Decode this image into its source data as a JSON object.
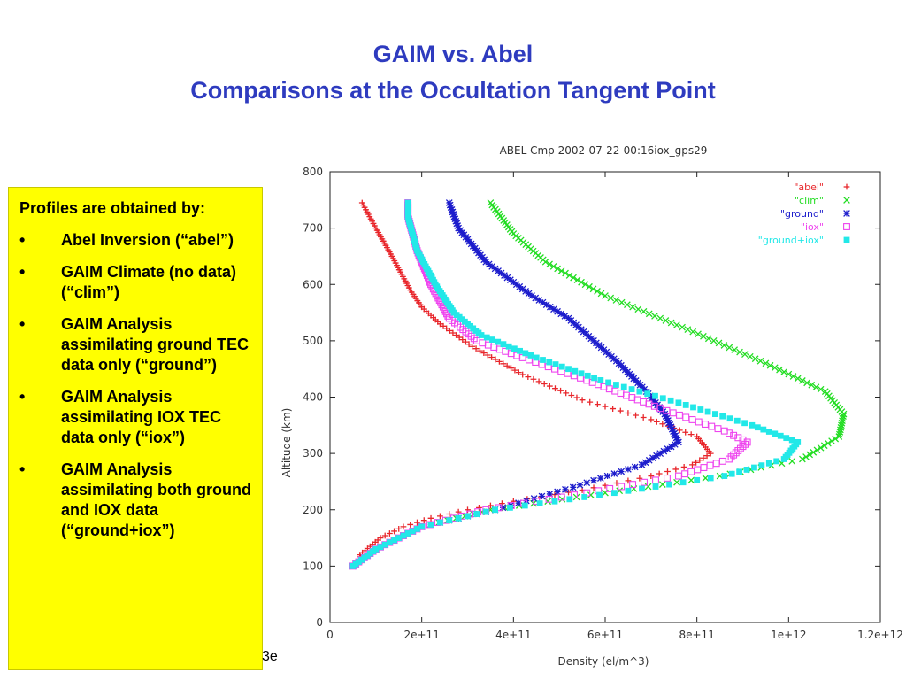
{
  "slide": {
    "title_line1": "GAIM vs. Abel",
    "title_line2": "Comparisons at the Occultation Tangent Point",
    "title_color": "#2e3bbf",
    "box_heading": "Profiles are obtained by:",
    "box_bullets": [
      "Abel Inversion (“abel”)",
      "GAIM Climate (no data) (“clim”)",
      "GAIM Analysis assimilating ground TEC data only (“ground”)",
      "GAIM Analysis assimilating IOX TEC data only (“iox”)",
      "GAIM Analysis assimilating both ground and IOX data (“ground+iox”)"
    ],
    "bullet_symbol": "•",
    "box_color": "#ffff00",
    "truncated_text": "3e"
  },
  "chart_data": {
    "type": "scatter",
    "title": "ABEL Cmp  2002-07-22-00:16iox_gps29",
    "xlabel": "Density (el/m^3)",
    "ylabel": "Altitude (km)",
    "xlim": [
      0,
      1200000000000.0
    ],
    "ylim": [
      0,
      800
    ],
    "xticks": [
      "0",
      "2e+11",
      "4e+11",
      "6e+11",
      "8e+11",
      "1e+12",
      "1.2e+12"
    ],
    "yticks": [
      "0",
      "100",
      "200",
      "300",
      "400",
      "500",
      "600",
      "700",
      "800"
    ],
    "legend_position": "top-right",
    "series": [
      {
        "name": "\"abel\"",
        "color": "#e8262b",
        "marker": "+",
        "points": [
          [
            70000000000.0,
            110
          ],
          [
            65000000000.0,
            120
          ],
          [
            110000000000.0,
            150
          ],
          [
            160000000000.0,
            170
          ],
          [
            220000000000.0,
            185
          ],
          [
            300000000000.0,
            200
          ],
          [
            400000000000.0,
            215
          ],
          [
            550000000000.0,
            235
          ],
          [
            700000000000.0,
            260
          ],
          [
            790000000000.0,
            280
          ],
          [
            830000000000.0,
            300
          ],
          [
            800000000000.0,
            330
          ],
          [
            700000000000.0,
            360
          ],
          [
            550000000000.0,
            395
          ],
          [
            420000000000.0,
            440
          ],
          [
            310000000000.0,
            490
          ],
          [
            240000000000.0,
            530
          ],
          [
            200000000000.0,
            560
          ],
          [
            175000000000.0,
            590
          ],
          [
            135000000000.0,
            650
          ],
          [
            100000000000.0,
            700
          ],
          [
            70000000000.0,
            745
          ]
        ]
      },
      {
        "name": "\"clim\"",
        "color": "#22dd22",
        "marker": "x",
        "points": [
          [
            50000000000.0,
            100
          ],
          [
            100000000000.0,
            130
          ],
          [
            200000000000.0,
            170
          ],
          [
            350000000000.0,
            200
          ],
          [
            600000000000.0,
            230
          ],
          [
            850000000000.0,
            260
          ],
          [
            1030000000000.0,
            290
          ],
          [
            1110000000000.0,
            330
          ],
          [
            1120000000000.0,
            370
          ],
          [
            1080000000000.0,
            410
          ],
          [
            950000000000.0,
            460
          ],
          [
            780000000000.0,
            520
          ],
          [
            600000000000.0,
            580
          ],
          [
            470000000000.0,
            640
          ],
          [
            400000000000.0,
            690
          ],
          [
            350000000000.0,
            745
          ]
        ]
      },
      {
        "name": "\"ground\"",
        "color": "#1c1ccc",
        "marker": "*",
        "points": [
          [
            50000000000.0,
            100
          ],
          [
            100000000000.0,
            130
          ],
          [
            200000000000.0,
            170
          ],
          [
            360000000000.0,
            200
          ],
          [
            530000000000.0,
            240
          ],
          [
            680000000000.0,
            280
          ],
          [
            760000000000.0,
            320
          ],
          [
            730000000000.0,
            370
          ],
          [
            690000000000.0,
            410
          ],
          [
            630000000000.0,
            460
          ],
          [
            520000000000.0,
            540
          ],
          [
            440000000000.0,
            580
          ],
          [
            340000000000.0,
            640
          ],
          [
            280000000000.0,
            700
          ],
          [
            260000000000.0,
            745
          ]
        ]
      },
      {
        "name": "\"iox\"",
        "color": "#ee44ee",
        "marker": "□",
        "points": [
          [
            50000000000.0,
            100
          ],
          [
            100000000000.0,
            130
          ],
          [
            200000000000.0,
            170
          ],
          [
            340000000000.0,
            200
          ],
          [
            560000000000.0,
            230
          ],
          [
            760000000000.0,
            260
          ],
          [
            870000000000.0,
            290
          ],
          [
            910000000000.0,
            320
          ],
          [
            860000000000.0,
            340
          ],
          [
            720000000000.0,
            380
          ],
          [
            560000000000.0,
            430
          ],
          [
            420000000000.0,
            470
          ],
          [
            320000000000.0,
            500
          ],
          [
            260000000000.0,
            540
          ],
          [
            220000000000.0,
            600
          ],
          [
            190000000000.0,
            660
          ],
          [
            170000000000.0,
            720
          ],
          [
            170000000000.0,
            745
          ]
        ]
      },
      {
        "name": "\"ground+iox\"",
        "color": "#22e8e8",
        "marker": "■",
        "points": [
          [
            50000000000.0,
            100
          ],
          [
            100000000000.0,
            130
          ],
          [
            200000000000.0,
            170
          ],
          [
            360000000000.0,
            200
          ],
          [
            620000000000.0,
            230
          ],
          [
            860000000000.0,
            260
          ],
          [
            990000000000.0,
            290
          ],
          [
            1020000000000.0,
            320
          ],
          [
            920000000000.0,
            350
          ],
          [
            760000000000.0,
            390
          ],
          [
            590000000000.0,
            430
          ],
          [
            450000000000.0,
            470
          ],
          [
            330000000000.0,
            510
          ],
          [
            270000000000.0,
            550
          ],
          [
            230000000000.0,
            600
          ],
          [
            190000000000.0,
            660
          ],
          [
            170000000000.0,
            720
          ],
          [
            170000000000.0,
            745
          ]
        ]
      }
    ]
  }
}
